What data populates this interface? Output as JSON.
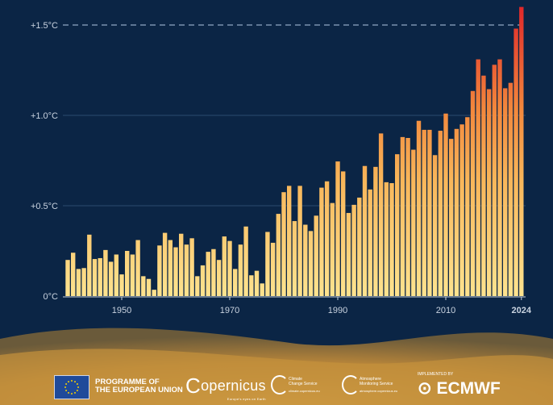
{
  "chart_data": {
    "type": "bar",
    "title": "",
    "xlabel": "",
    "ylabel": "",
    "x_tick_labels": [
      "1950",
      "1970",
      "1990",
      "2010",
      "2024"
    ],
    "y_tick_labels": [
      "0°C",
      "+0.5°C",
      "+1.0°C",
      "+1.5°C"
    ],
    "y_ticks": [
      0,
      0.5,
      1.0,
      1.5
    ],
    "ylim": [
      0,
      1.6
    ],
    "xlim": [
      1940,
      2024
    ],
    "grid": "horizontal",
    "reference_line": {
      "value": 1.5,
      "style": "dashed"
    },
    "colors": {
      "low": "#fde38f",
      "mid": "#f59a45",
      "high": "#e2302a",
      "background": "#0b2545"
    },
    "categories": [
      1940,
      1941,
      1942,
      1943,
      1944,
      1945,
      1946,
      1947,
      1948,
      1949,
      1950,
      1951,
      1952,
      1953,
      1954,
      1955,
      1956,
      1957,
      1958,
      1959,
      1960,
      1961,
      1962,
      1963,
      1964,
      1965,
      1966,
      1967,
      1968,
      1969,
      1970,
      1971,
      1972,
      1973,
      1974,
      1975,
      1976,
      1977,
      1978,
      1979,
      1980,
      1981,
      1982,
      1983,
      1984,
      1985,
      1986,
      1987,
      1988,
      1989,
      1990,
      1991,
      1992,
      1993,
      1994,
      1995,
      1996,
      1997,
      1998,
      1999,
      2000,
      2001,
      2002,
      2003,
      2004,
      2005,
      2006,
      2007,
      2008,
      2009,
      2010,
      2011,
      2012,
      2013,
      2014,
      2015,
      2016,
      2017,
      2018,
      2019,
      2020,
      2021,
      2022,
      2023,
      2024
    ],
    "values": [
      0.2,
      0.24,
      0.15,
      0.155,
      0.34,
      0.205,
      0.21,
      0.255,
      0.19,
      0.23,
      0.12,
      0.25,
      0.23,
      0.31,
      0.11,
      0.095,
      0.035,
      0.28,
      0.35,
      0.31,
      0.27,
      0.345,
      0.285,
      0.32,
      0.11,
      0.17,
      0.245,
      0.26,
      0.2,
      0.33,
      0.305,
      0.15,
      0.285,
      0.385,
      0.115,
      0.14,
      0.07,
      0.355,
      0.295,
      0.455,
      0.575,
      0.61,
      0.415,
      0.61,
      0.395,
      0.36,
      0.445,
      0.6,
      0.635,
      0.515,
      0.745,
      0.69,
      0.46,
      0.505,
      0.545,
      0.72,
      0.59,
      0.715,
      0.9,
      0.63,
      0.625,
      0.785,
      0.88,
      0.875,
      0.81,
      0.97,
      0.92,
      0.92,
      0.78,
      0.915,
      1.01,
      0.87,
      0.925,
      0.95,
      0.99,
      1.135,
      1.31,
      1.22,
      1.145,
      1.28,
      1.31,
      1.15,
      1.18,
      1.48,
      1.6
    ]
  },
  "footer": {
    "eu_line1": "PROGRAMME OF",
    "eu_line2": "THE EUROPEAN UNION",
    "copernicus": "opernicus",
    "copernicus_tagline": "Europe's eyes on Earth",
    "c3s_line1": "Climate",
    "c3s_line2": "Change Service",
    "c3s_url": "climate.copernicus.eu",
    "cams_line1": "Atmosphere",
    "cams_line2": "Monitoring Service",
    "cams_url": "atmosphere.copernicus.eu",
    "implemented_by": "IMPLEMENTED BY",
    "ecmwf": "ECMWF"
  }
}
